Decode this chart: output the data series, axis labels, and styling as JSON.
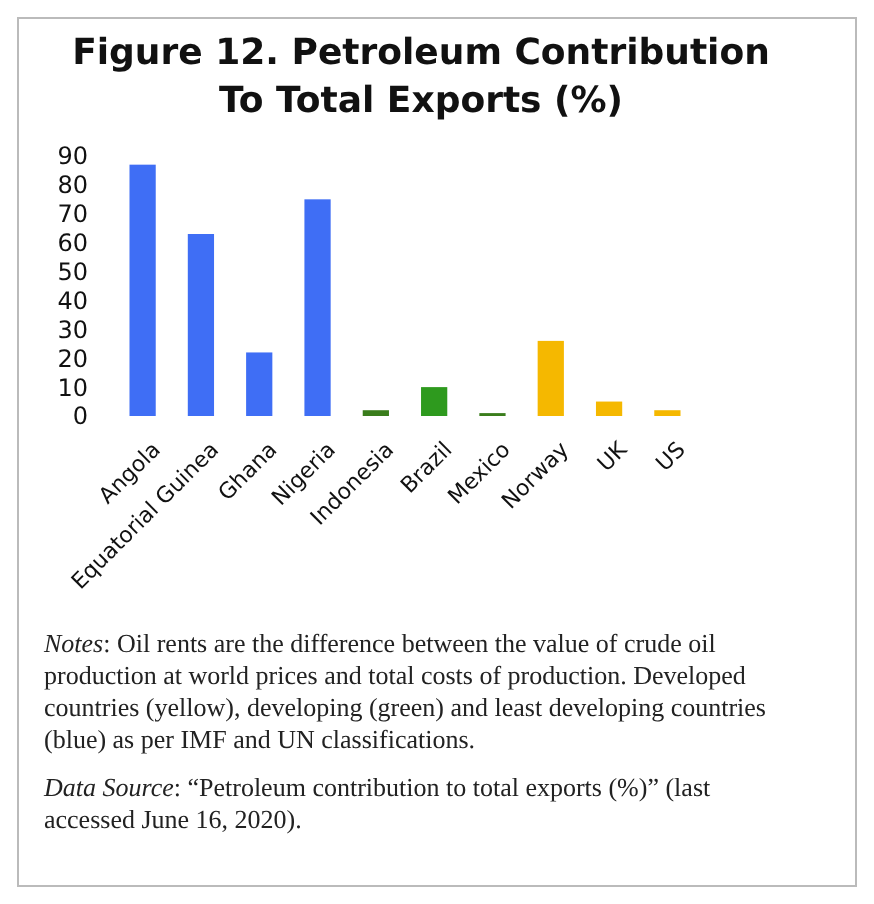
{
  "chart_data": {
    "type": "bar",
    "title": "Figure 12. Petroleum Contribution To Total Exports (%)",
    "categories": [
      "Angola",
      "Equatorial Guinea",
      "Ghana",
      "Nigeria",
      "Indonesia",
      "Brazil",
      "Mexico",
      "Norway",
      "UK",
      "US"
    ],
    "values": [
      87,
      63,
      22,
      75,
      2,
      10,
      1,
      26,
      5,
      2
    ],
    "colors": [
      "#3f6ef5",
      "#3f6ef5",
      "#3f6ef5",
      "#3f6ef5",
      "#3a7d1c",
      "#2e9a1e",
      "#3a7d1c",
      "#f5b800",
      "#f5b800",
      "#f5b800"
    ],
    "ylim": [
      0,
      90
    ],
    "yticks": [
      0,
      10,
      20,
      30,
      40,
      50,
      60,
      70,
      80,
      90
    ],
    "grid": false,
    "annotations": [
      "Notes: Oil rents are the difference between the value of crude oil production at world prices and total costs of production. Developed countries (yellow), developing (green) and least developing countries (blue) as per IMF and UN classifications.",
      "Data Source: “Petroleum contribution to total exports (%)” (last accessed June 16, 2020)."
    ]
  }
}
